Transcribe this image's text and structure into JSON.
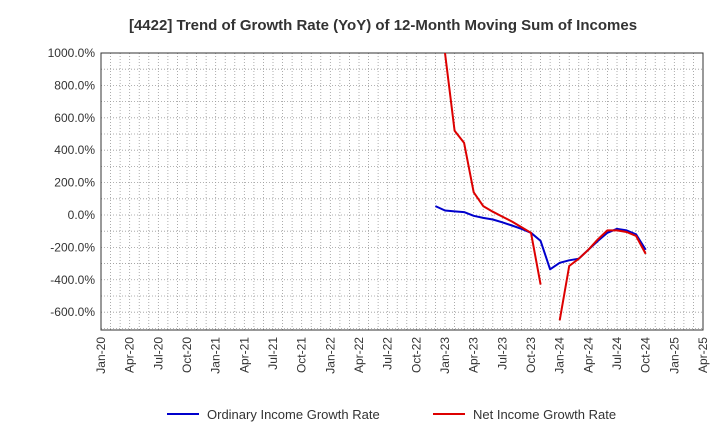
{
  "chart_data": {
    "type": "line",
    "title": "[4422]  Trend of Growth Rate (YoY) of 12-Month Moving Sum of Incomes",
    "xlabel": "",
    "ylabel": "",
    "x_ticks": [
      "Jan-20",
      "Apr-20",
      "Jul-20",
      "Oct-20",
      "Jan-21",
      "Apr-21",
      "Jul-21",
      "Oct-21",
      "Jan-22",
      "Apr-22",
      "Jul-22",
      "Oct-22",
      "Jan-23",
      "Apr-23",
      "Jul-23",
      "Oct-23",
      "Jan-24",
      "Apr-24",
      "Jul-24",
      "Oct-24",
      "Jan-25",
      "Apr-25"
    ],
    "y_ticks": [
      "1000.0%",
      "800.0%",
      "600.0%",
      "400.0%",
      "200.0%",
      "0.0%",
      "-200.0%",
      "-400.0%",
      "-600.0%"
    ],
    "y_tick_values": [
      1000,
      800,
      600,
      400,
      200,
      0,
      -200,
      -400,
      -600
    ],
    "ylim": [
      -710,
      1000
    ],
    "xlim": [
      "2020-01",
      "2025-04"
    ],
    "grid": true,
    "legend_position": "bottom",
    "series": [
      {
        "name": "Ordinary Income Growth Rate",
        "color": "#0000cc",
        "points": [
          [
            "2022-12",
            55
          ],
          [
            "2023-01",
            28
          ],
          [
            "2023-02",
            22
          ],
          [
            "2023-03",
            18
          ],
          [
            "2023-04",
            -5
          ],
          [
            "2023-05",
            -18
          ],
          [
            "2023-06",
            -28
          ],
          [
            "2023-07",
            -45
          ],
          [
            "2023-08",
            -65
          ],
          [
            "2023-09",
            -85
          ],
          [
            "2023-10",
            -110
          ],
          [
            "2023-11",
            -160
          ],
          [
            "2023-12",
            -335
          ],
          [
            "2024-01",
            -295
          ],
          [
            "2024-02",
            -280
          ],
          [
            "2024-03",
            -270
          ],
          [
            "2024-04",
            -215
          ],
          [
            "2024-05",
            -160
          ],
          [
            "2024-06",
            -110
          ],
          [
            "2024-07",
            -85
          ],
          [
            "2024-08",
            -95
          ],
          [
            "2024-09",
            -120
          ],
          [
            "2024-10",
            -215
          ]
        ]
      },
      {
        "name": "Net Income Growth Rate",
        "color": "#dd0000",
        "points": [
          [
            "2023-01",
            1000
          ],
          [
            "2023-02",
            520
          ],
          [
            "2023-03",
            445
          ],
          [
            "2023-04",
            140
          ],
          [
            "2023-05",
            55
          ],
          [
            "2023-06",
            20
          ],
          [
            "2023-07",
            -10
          ],
          [
            "2023-08",
            -40
          ],
          [
            "2023-09",
            -75
          ],
          [
            "2023-10",
            -110
          ],
          [
            "2023-11",
            -430
          ],
          null,
          [
            "2024-01",
            -650
          ],
          [
            "2024-02",
            -315
          ],
          [
            "2024-03",
            -270
          ],
          [
            "2024-04",
            -215
          ],
          [
            "2024-05",
            -150
          ],
          [
            "2024-06",
            -95
          ],
          [
            "2024-07",
            -95
          ],
          [
            "2024-08",
            -105
          ],
          [
            "2024-09",
            -130
          ],
          [
            "2024-10",
            -240
          ]
        ]
      }
    ]
  }
}
